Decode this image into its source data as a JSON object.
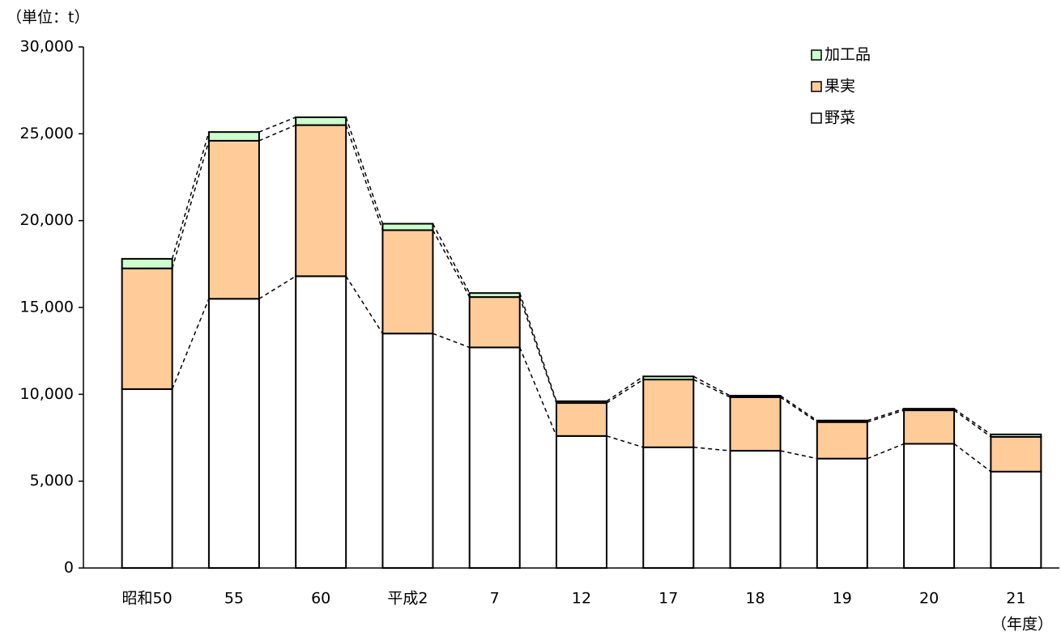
{
  "chart_data": {
    "type": "stacked_bar",
    "unit_label": "（単位：t）",
    "x_unit_label": "（年度）",
    "categories": [
      "昭和50",
      "55",
      "60",
      "平成2",
      "7",
      "12",
      "17",
      "18",
      "19",
      "20",
      "21"
    ],
    "series": [
      {
        "name": "野菜",
        "color": "#ffffff",
        "values": [
          10300,
          15500,
          16800,
          13500,
          12700,
          7600,
          6950,
          6750,
          6300,
          7150,
          5550
        ]
      },
      {
        "name": "果実",
        "color": "#ffcc99",
        "values": [
          6950,
          9100,
          8700,
          5950,
          2900,
          1900,
          3900,
          3080,
          2100,
          1930,
          2000
        ]
      },
      {
        "name": "加工品",
        "color": "#ccffcc",
        "values": [
          550,
          500,
          450,
          370,
          230,
          100,
          180,
          90,
          90,
          90,
          140
        ]
      }
    ],
    "ylim": [
      0,
      30000
    ],
    "yticks": [
      0,
      {
        "value": 5000,
        "label": "5,000"
      },
      {
        "value": 10000,
        "label": "10,000"
      },
      {
        "value": 15000,
        "label": "15,000"
      },
      {
        "value": 20000,
        "label": "20,000"
      },
      {
        "value": 25000,
        "label": "25,000"
      },
      {
        "value": 30000,
        "label": "30,000"
      }
    ],
    "legend": "upper right",
    "connectors": true
  }
}
